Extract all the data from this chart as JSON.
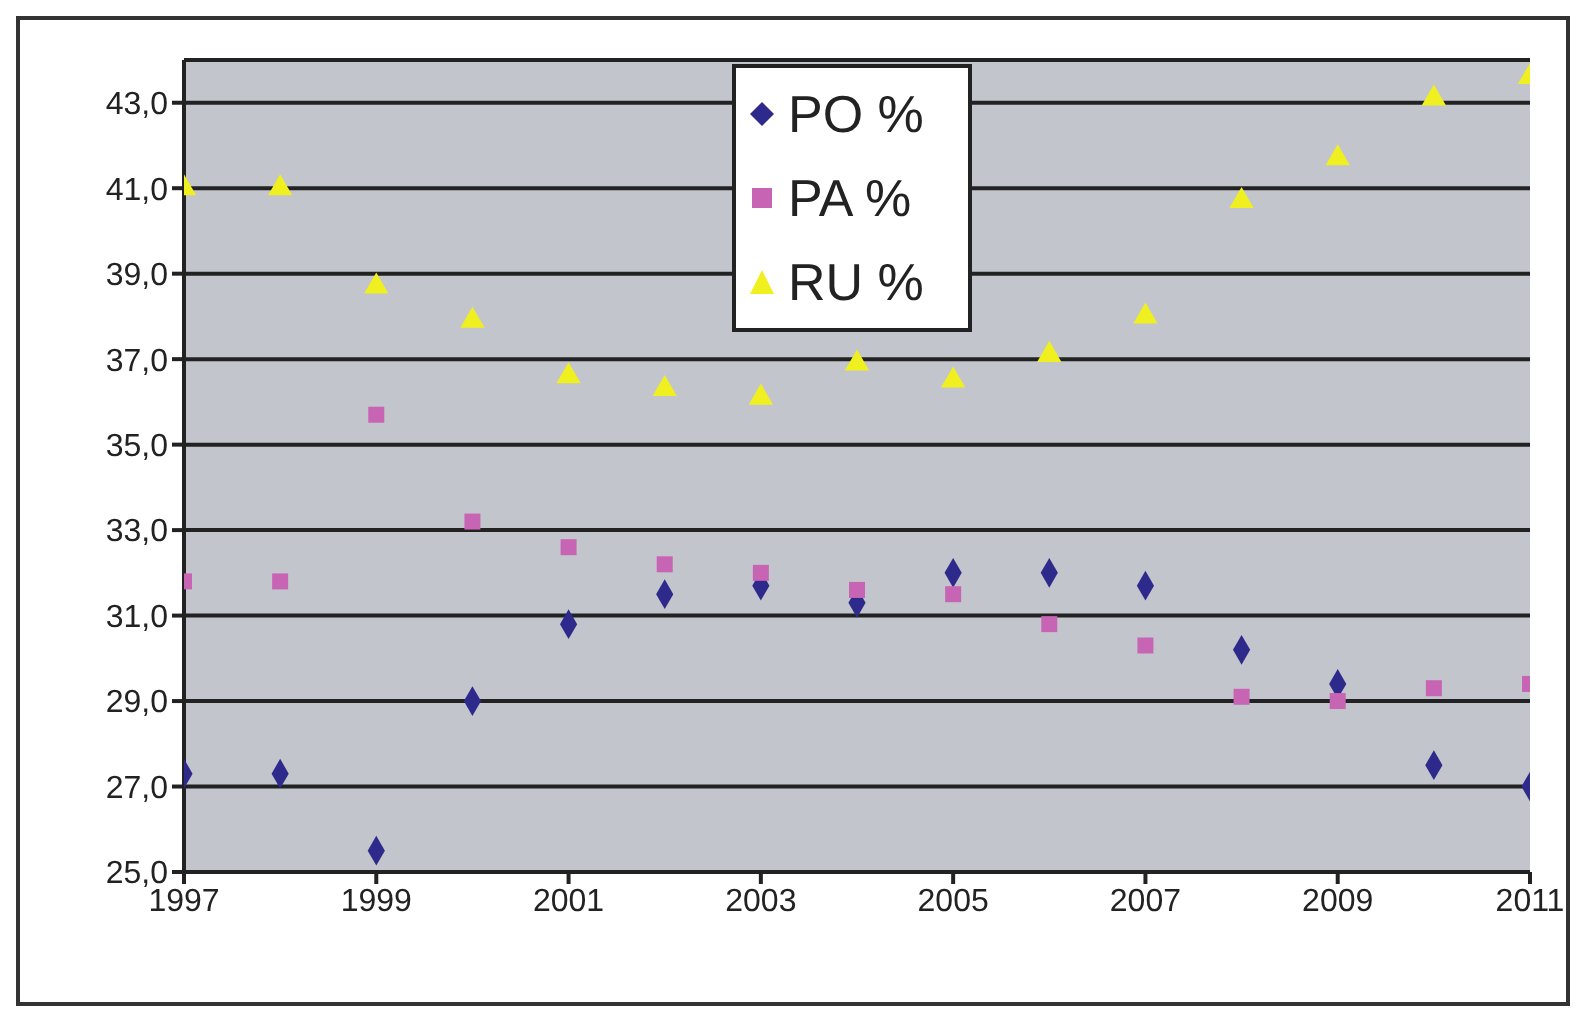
{
  "chart_data": {
    "type": "scatter",
    "x": [
      1997,
      1998,
      1999,
      2000,
      2001,
      2002,
      2003,
      2004,
      2005,
      2006,
      2007,
      2008,
      2009,
      2010,
      2011
    ],
    "series": [
      {
        "name": "PO %",
        "color": "#2e2a8c",
        "marker": "diamond",
        "values": [
          27.3,
          27.3,
          25.5,
          29.0,
          30.8,
          31.5,
          31.7,
          31.3,
          32.0,
          32.0,
          31.7,
          30.2,
          29.4,
          27.5,
          27.0
        ]
      },
      {
        "name": "PA %",
        "color": "#c864b4",
        "marker": "square",
        "values": [
          31.8,
          31.8,
          35.7,
          33.2,
          32.6,
          32.2,
          32.0,
          31.6,
          31.5,
          30.8,
          30.3,
          29.1,
          29.0,
          29.3,
          29.4
        ]
      },
      {
        "name": "RU %",
        "color": "#f0f020",
        "marker": "triangle",
        "values": [
          41.0,
          41.0,
          38.7,
          37.9,
          36.6,
          36.3,
          36.1,
          36.9,
          36.5,
          37.1,
          38.0,
          40.7,
          41.7,
          43.1,
          43.6
        ]
      }
    ],
    "xlim": [
      1997,
      2011
    ],
    "xticks": [
      1997,
      1999,
      2001,
      2003,
      2005,
      2007,
      2009,
      2011
    ],
    "ylim": [
      25,
      44
    ],
    "yticks": [
      {
        "value": 25,
        "label": "25,0"
      },
      {
        "value": 27,
        "label": "27,0"
      },
      {
        "value": 29,
        "label": "29,0"
      },
      {
        "value": 31,
        "label": "31,0"
      },
      {
        "value": 33,
        "label": "33,0"
      },
      {
        "value": 35,
        "label": "35,0"
      },
      {
        "value": 37,
        "label": "37,0"
      },
      {
        "value": 39,
        "label": "39,0"
      },
      {
        "value": 41,
        "label": "41,0"
      },
      {
        "value": 43,
        "label": "43,0"
      }
    ],
    "grid": "y",
    "legend": "top"
  }
}
